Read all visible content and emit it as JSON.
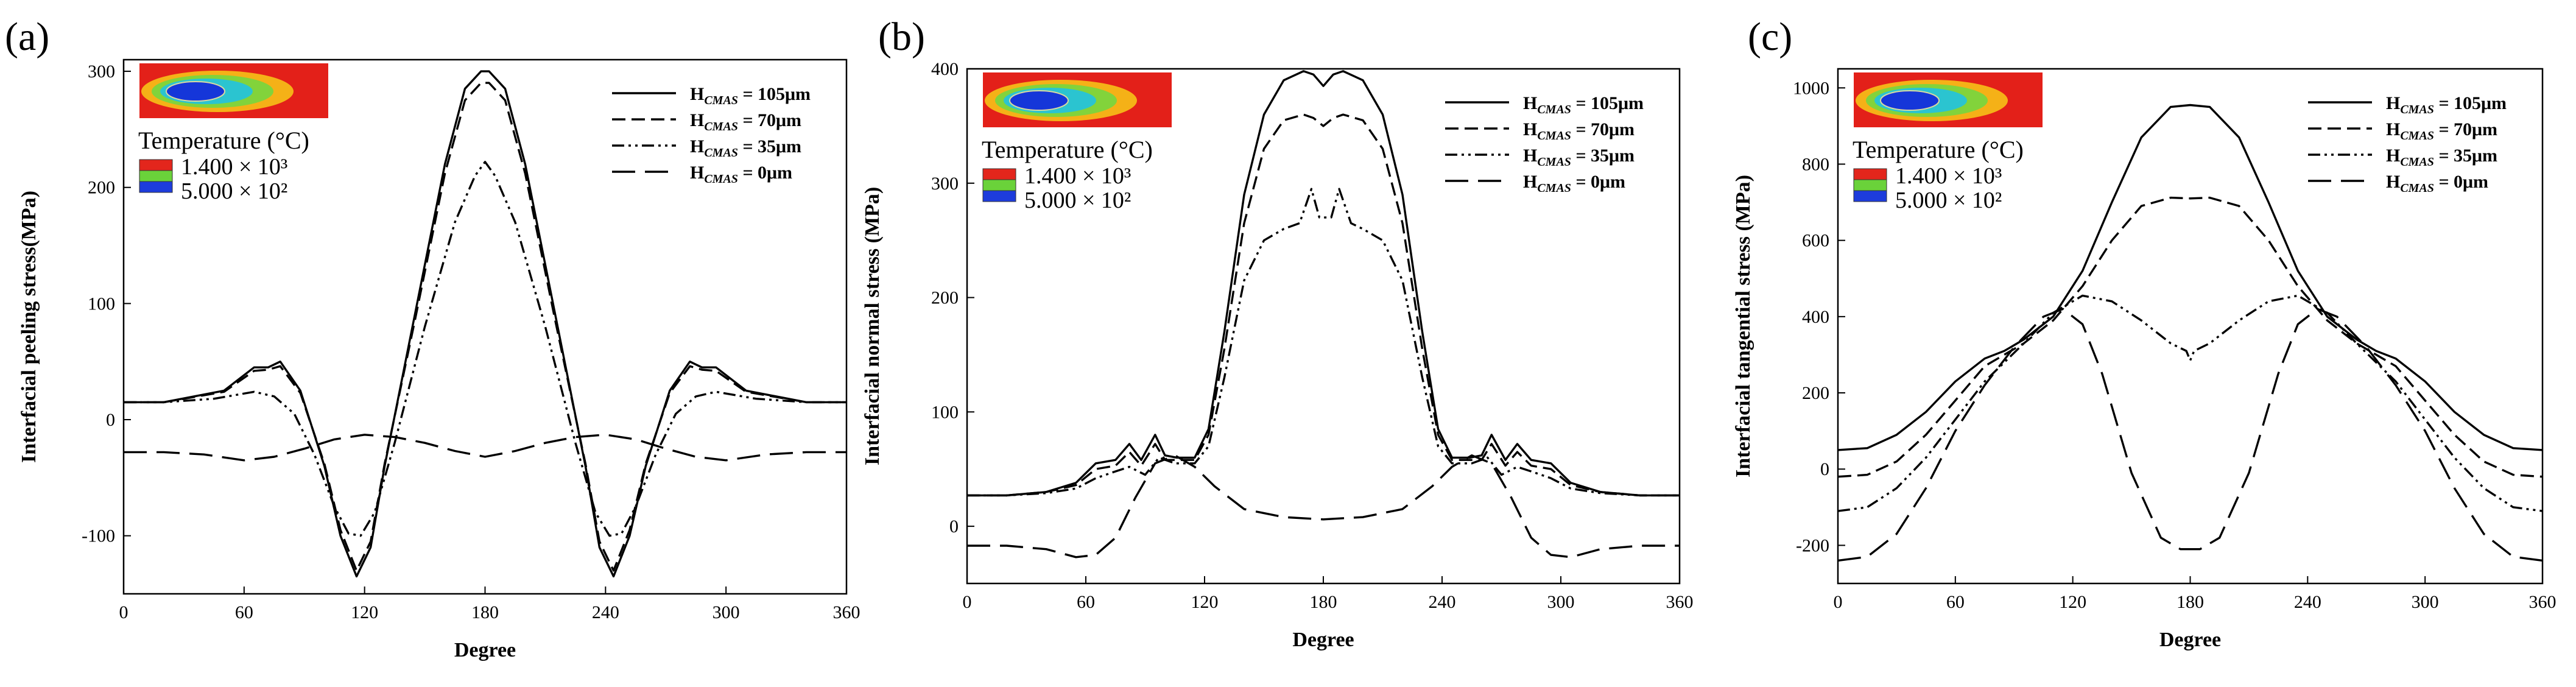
{
  "chart_data": [
    {
      "type": "line",
      "panel_label": "(a)",
      "xlabel": "Degree",
      "ylabel": "Interfacial peeling stress(MPa)",
      "xlim": [
        0,
        360
      ],
      "ylim": [
        -150,
        310
      ],
      "xticks": [
        0,
        60,
        120,
        180,
        240,
        300,
        360
      ],
      "yticks": [
        -100,
        0,
        100,
        200,
        300
      ],
      "legend_position": "top-right",
      "inset": {
        "title": "Temperature (°C)",
        "max_label": "1.400 × 10³",
        "min_label": "5.000 × 10²"
      },
      "series": [
        {
          "name": "H_CMAS = 105μm",
          "legend_sub": "CMAS",
          "legend_value": "= 105μm",
          "style": "solid",
          "x": [
            0,
            20,
            50,
            65,
            72,
            78,
            88,
            100,
            108,
            116,
            123,
            130,
            145,
            160,
            170,
            178,
            182,
            190,
            200,
            215,
            230,
            237,
            244,
            252,
            260,
            272,
            282,
            288,
            295,
            310,
            340,
            360
          ],
          "y": [
            15,
            15,
            25,
            45,
            45,
            50,
            25,
            -40,
            -100,
            -135,
            -110,
            -40,
            90,
            220,
            285,
            300,
            300,
            285,
            220,
            90,
            -40,
            -110,
            -135,
            -100,
            -40,
            25,
            50,
            45,
            45,
            25,
            15,
            15
          ]
        },
        {
          "name": "H_CMAS = 70μm",
          "legend_sub": "CMAS",
          "legend_value": "=  70μm",
          "style": "dashed",
          "x": [
            0,
            20,
            50,
            65,
            72,
            78,
            88,
            100,
            108,
            116,
            123,
            130,
            145,
            160,
            170,
            178,
            182,
            190,
            200,
            215,
            230,
            237,
            244,
            252,
            260,
            272,
            282,
            288,
            295,
            310,
            340,
            360
          ],
          "y": [
            15,
            15,
            24,
            42,
            43,
            46,
            23,
            -38,
            -95,
            -130,
            -105,
            -38,
            85,
            212,
            275,
            290,
            290,
            275,
            212,
            85,
            -38,
            -105,
            -130,
            -95,
            -38,
            23,
            46,
            43,
            42,
            24,
            15,
            15
          ]
        },
        {
          "name": "H_CMAS = 35μm",
          "legend_sub": "CMAS",
          "legend_value": "=  35μm",
          "style": "dashdotdot",
          "x": [
            0,
            20,
            45,
            65,
            75,
            85,
            95,
            105,
            112,
            118,
            125,
            135,
            150,
            165,
            175,
            180,
            185,
            195,
            210,
            225,
            235,
            242,
            248,
            255,
            265,
            275,
            285,
            295,
            315,
            340,
            360
          ],
          "y": [
            15,
            15,
            18,
            24,
            20,
            5,
            -30,
            -75,
            -98,
            -100,
            -80,
            -20,
            80,
            170,
            210,
            222,
            210,
            170,
            80,
            -20,
            -80,
            -100,
            -98,
            -75,
            -30,
            5,
            20,
            24,
            18,
            15,
            15
          ]
        },
        {
          "name": "H_CMAS = 0μm",
          "legend_sub": "CMAS",
          "legend_value": "=   0μm",
          "style": "longdash",
          "x": [
            0,
            20,
            40,
            60,
            75,
            90,
            105,
            120,
            135,
            150,
            165,
            180,
            195,
            210,
            225,
            240,
            255,
            270,
            285,
            300,
            320,
            340,
            360
          ],
          "y": [
            -28,
            -28,
            -30,
            -35,
            -32,
            -25,
            -17,
            -13,
            -15,
            -20,
            -27,
            -32,
            -27,
            -20,
            -15,
            -13,
            -17,
            -25,
            -32,
            -35,
            -30,
            -28,
            -28
          ]
        }
      ]
    },
    {
      "type": "line",
      "panel_label": "(b)",
      "xlabel": "Degree",
      "ylabel": "Interfacial normal stress (MPa)",
      "xlim": [
        0,
        360
      ],
      "ylim": [
        -50,
        400
      ],
      "xticks": [
        0,
        60,
        120,
        180,
        240,
        300,
        360
      ],
      "yticks": [
        0,
        100,
        200,
        300,
        400
      ],
      "legend_position": "top-right",
      "inset": {
        "title": "Temperature (°C)",
        "max_label": "1.400 × 10³",
        "min_label": "5.000 × 10²"
      },
      "series": [
        {
          "name": "H_CMAS = 105μm",
          "legend_sub": "CMAS",
          "legend_value": "= 105μm",
          "style": "solid",
          "x": [
            0,
            20,
            40,
            55,
            65,
            75,
            82,
            88,
            95,
            100,
            106,
            115,
            122,
            130,
            140,
            150,
            160,
            170,
            175,
            180,
            185,
            190,
            200,
            210,
            220,
            230,
            238,
            245,
            254,
            260,
            265,
            272,
            278,
            285,
            295,
            305,
            320,
            340,
            360
          ],
          "y": [
            27,
            27,
            30,
            38,
            55,
            58,
            72,
            58,
            80,
            62,
            60,
            60,
            85,
            170,
            290,
            360,
            390,
            398,
            395,
            385,
            395,
            398,
            390,
            360,
            290,
            170,
            85,
            60,
            60,
            62,
            80,
            58,
            72,
            58,
            55,
            38,
            30,
            27,
            27
          ]
        },
        {
          "name": "H_CMAS = 70μm",
          "legend_sub": "CMAS",
          "legend_value": "=  70μm",
          "style": "dashed",
          "x": [
            0,
            20,
            40,
            55,
            65,
            75,
            82,
            88,
            95,
            100,
            106,
            115,
            122,
            130,
            140,
            150,
            160,
            170,
            175,
            180,
            185,
            190,
            200,
            210,
            220,
            230,
            238,
            245,
            254,
            260,
            265,
            272,
            278,
            285,
            295,
            305,
            320,
            340,
            360
          ],
          "y": [
            27,
            27,
            30,
            36,
            50,
            53,
            65,
            53,
            72,
            58,
            58,
            58,
            80,
            155,
            265,
            330,
            355,
            360,
            357,
            350,
            357,
            360,
            355,
            330,
            265,
            155,
            80,
            58,
            58,
            58,
            72,
            53,
            65,
            53,
            50,
            36,
            30,
            27,
            27
          ]
        },
        {
          "name": "H_CMAS = 35μm",
          "legend_sub": "CMAS",
          "legend_value": "=  35μm",
          "style": "dashdotdot",
          "x": [
            0,
            20,
            40,
            55,
            65,
            75,
            82,
            90,
            97,
            105,
            115,
            122,
            130,
            140,
            150,
            160,
            168,
            174,
            178,
            181,
            184,
            188,
            194,
            200,
            210,
            220,
            230,
            238,
            245,
            255,
            263,
            270,
            278,
            285,
            295,
            305,
            320,
            340,
            360
          ],
          "y": [
            27,
            27,
            29,
            33,
            42,
            48,
            52,
            45,
            60,
            55,
            55,
            70,
            130,
            215,
            250,
            260,
            265,
            295,
            270,
            270,
            270,
            295,
            265,
            260,
            250,
            215,
            130,
            70,
            55,
            55,
            60,
            45,
            52,
            48,
            42,
            33,
            29,
            27,
            27
          ]
        },
        {
          "name": "H_CMAS = 0μm",
          "legend_sub": "CMAS",
          "legend_value": "=   0μm",
          "style": "longdash",
          "x": [
            0,
            20,
            40,
            55,
            65,
            75,
            85,
            95,
            105,
            115,
            125,
            140,
            160,
            180,
            200,
            220,
            235,
            245,
            255,
            265,
            275,
            285,
            295,
            305,
            320,
            340,
            360
          ],
          "y": [
            -17,
            -17,
            -20,
            -27,
            -25,
            -10,
            25,
            55,
            62,
            52,
            35,
            15,
            8,
            6,
            8,
            15,
            35,
            52,
            62,
            55,
            25,
            -10,
            -25,
            -27,
            -20,
            -17,
            -17
          ]
        }
      ]
    },
    {
      "type": "line",
      "panel_label": "(c)",
      "xlabel": "Degree",
      "ylabel": "Interfacial tangential stress (MPa)",
      "xlim": [
        0,
        360
      ],
      "ylim": [
        -300,
        1050
      ],
      "xticks": [
        0,
        60,
        120,
        180,
        240,
        300,
        360
      ],
      "yticks": [
        -200,
        0,
        200,
        400,
        600,
        800,
        1000
      ],
      "legend_position": "top-right",
      "inset": {
        "title": "Temperature (°C)",
        "max_label": "1.400 × 10³",
        "min_label": "5.000 × 10²"
      },
      "series": [
        {
          "name": "H_CMAS = 105μm",
          "legend_sub": "CMAS",
          "legend_value": "= 105μm",
          "style": "solid",
          "x": [
            0,
            15,
            30,
            45,
            60,
            75,
            85,
            95,
            110,
            125,
            140,
            155,
            170,
            180,
            190,
            205,
            220,
            235,
            250,
            265,
            275,
            285,
            300,
            315,
            330,
            345,
            360
          ],
          "y": [
            50,
            55,
            90,
            150,
            230,
            290,
            310,
            340,
            400,
            520,
            700,
            870,
            950,
            955,
            950,
            870,
            700,
            520,
            400,
            340,
            310,
            290,
            230,
            150,
            90,
            55,
            50
          ]
        },
        {
          "name": "H_CMAS = 70μm",
          "legend_sub": "CMAS",
          "legend_value": "=  70μm",
          "style": "dashed",
          "x": [
            0,
            15,
            30,
            45,
            60,
            75,
            85,
            95,
            110,
            125,
            140,
            155,
            170,
            180,
            190,
            205,
            220,
            235,
            250,
            265,
            275,
            285,
            300,
            315,
            330,
            345,
            360
          ],
          "y": [
            -20,
            -15,
            20,
            90,
            180,
            270,
            300,
            330,
            390,
            480,
            600,
            690,
            712,
            710,
            712,
            690,
            600,
            480,
            390,
            330,
            300,
            270,
            180,
            90,
            20,
            -15,
            -20
          ]
        },
        {
          "name": "H_CMAS = 35μm",
          "legend_sub": "CMAS",
          "legend_value": "=  35μm",
          "style": "dashdotdot",
          "x": [
            0,
            15,
            30,
            45,
            60,
            75,
            85,
            95,
            110,
            125,
            140,
            155,
            170,
            178,
            180,
            182,
            190,
            205,
            220,
            235,
            250,
            265,
            275,
            285,
            300,
            315,
            330,
            345,
            360
          ],
          "y": [
            -110,
            -100,
            -50,
            30,
            130,
            230,
            280,
            330,
            410,
            455,
            440,
            390,
            330,
            310,
            285,
            310,
            330,
            390,
            440,
            455,
            410,
            330,
            280,
            230,
            130,
            30,
            -50,
            -100,
            -110
          ]
        },
        {
          "name": "H_CMAS = 0μm",
          "legend_sub": "CMAS",
          "legend_value": "=   0μm",
          "style": "longdash",
          "x": [
            0,
            15,
            30,
            45,
            60,
            75,
            90,
            105,
            115,
            125,
            135,
            150,
            165,
            175,
            180,
            185,
            195,
            210,
            225,
            235,
            245,
            255,
            270,
            285,
            300,
            315,
            330,
            345,
            360
          ],
          "y": [
            -240,
            -230,
            -170,
            -50,
            100,
            220,
            320,
            400,
            420,
            380,
            250,
            -10,
            -180,
            -210,
            -210,
            -210,
            -180,
            -10,
            250,
            380,
            420,
            400,
            320,
            220,
            100,
            -50,
            -170,
            -230,
            -240
          ]
        }
      ]
    }
  ]
}
